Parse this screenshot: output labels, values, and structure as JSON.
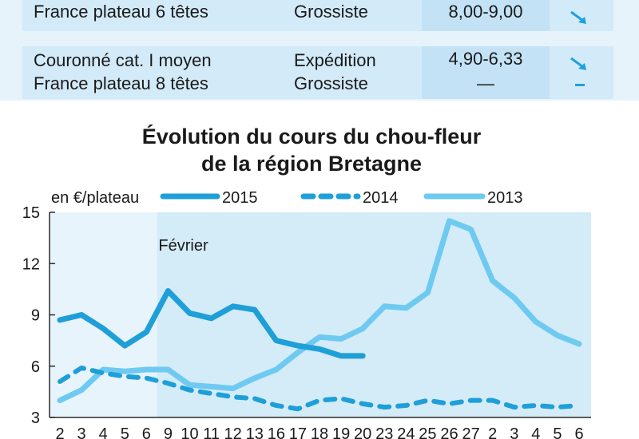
{
  "price_table": {
    "rows": [
      {
        "product_lines": [
          "France plateau 6 têtes"
        ],
        "stage_lines": [
          "Grossiste"
        ],
        "price_lines": [
          "8,00-9,00"
        ],
        "trends": [
          "down"
        ]
      },
      {
        "product_lines": [
          "Couronné cat. I moyen",
          "France plateau 8 têtes"
        ],
        "stage_lines": [
          "Expédition",
          "Grossiste"
        ],
        "price_lines": [
          "4,90-6,33",
          "—"
        ],
        "trends": [
          "down",
          "stable"
        ]
      }
    ]
  },
  "chart_data": {
    "type": "line",
    "title_lines": [
      "Évolution du cours du chou-fleur",
      "de la région Bretagne"
    ],
    "unit_label": "en €/plateau",
    "ylim": [
      3,
      15
    ],
    "yticks": [
      3,
      6,
      9,
      12,
      15
    ],
    "categories": [
      "2",
      "3",
      "4",
      "5",
      "6",
      "9",
      "10",
      "11",
      "12",
      "13",
      "16",
      "17",
      "18",
      "19",
      "20",
      "23",
      "24",
      "25",
      "26",
      "27",
      "2",
      "3",
      "4",
      "5",
      "6"
    ],
    "annotation": {
      "text": "Février",
      "at_category_index": 5
    },
    "series": [
      {
        "name": "2015",
        "style": "solid",
        "color": "#1e9fd8",
        "values": [
          8.7,
          9.0,
          8.2,
          7.2,
          8.0,
          10.4,
          9.1,
          8.8,
          9.5,
          9.3,
          7.5,
          7.2,
          7.0,
          6.6,
          6.6,
          null,
          null,
          null,
          null,
          null,
          null,
          null,
          null,
          null,
          null
        ]
      },
      {
        "name": "2014",
        "style": "dashed",
        "color": "#1e9fd8",
        "values": [
          5.1,
          5.9,
          5.6,
          5.4,
          5.3,
          5.0,
          4.6,
          4.4,
          4.2,
          4.1,
          3.7,
          3.5,
          4.0,
          4.1,
          3.8,
          3.6,
          3.7,
          4.0,
          3.8,
          4.0,
          4.0,
          3.6,
          3.7,
          3.6,
          3.7
        ]
      },
      {
        "name": "2013",
        "style": "solid",
        "color": "#6ecaf0",
        "values": [
          4.0,
          4.6,
          5.8,
          5.7,
          5.8,
          5.8,
          4.9,
          4.8,
          4.7,
          5.3,
          5.8,
          6.8,
          7.7,
          7.6,
          8.2,
          9.5,
          9.4,
          10.3,
          14.5,
          14.0,
          11.0,
          10.0,
          8.6,
          7.8,
          7.3
        ]
      }
    ]
  }
}
